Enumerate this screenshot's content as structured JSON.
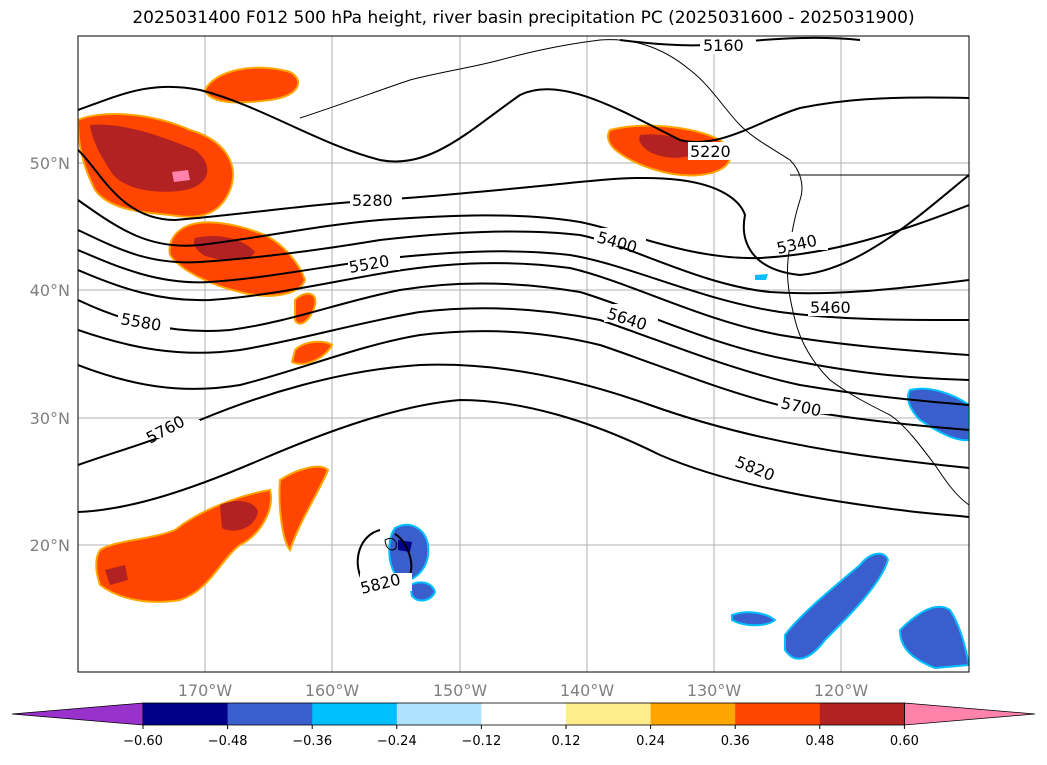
{
  "title": "2025031400 F012 500 hPa height, river basin precipitation PC (2025031600 - 2025031900)",
  "lat_labels": [
    "50°N",
    "40°N",
    "30°N",
    "20°N"
  ],
  "lon_labels": [
    "170°W",
    "160°W",
    "150°W",
    "140°W",
    "130°W",
    "120°W"
  ],
  "contour_labels": [
    "5160",
    "5220",
    "5280",
    "5340",
    "5400",
    "5460",
    "5520",
    "5580",
    "5640",
    "5700",
    "5760",
    "5820",
    "5820"
  ],
  "colorbar": {
    "ticks": [
      "−0.60",
      "−0.48",
      "−0.36",
      "−0.24",
      "−0.12",
      "0.12",
      "0.24",
      "0.36",
      "0.48",
      "0.60"
    ],
    "colors": [
      "#9932cc",
      "#00008b",
      "#3a5fcd",
      "#00bfff",
      "#b0e2ff",
      "#ffffff",
      "#ffec8b",
      "#ffa500",
      "#ff4500",
      "#b22222",
      "#ff82ab"
    ]
  },
  "colors": {
    "neg_strong": "#00008b",
    "neg_mid": "#3a5fcd",
    "neg_light": "#00bfff",
    "pos_light": "#ffa500",
    "pos_mid": "#ff4500",
    "pos_strong": "#b22222",
    "pos_max": "#ff82ab"
  }
}
